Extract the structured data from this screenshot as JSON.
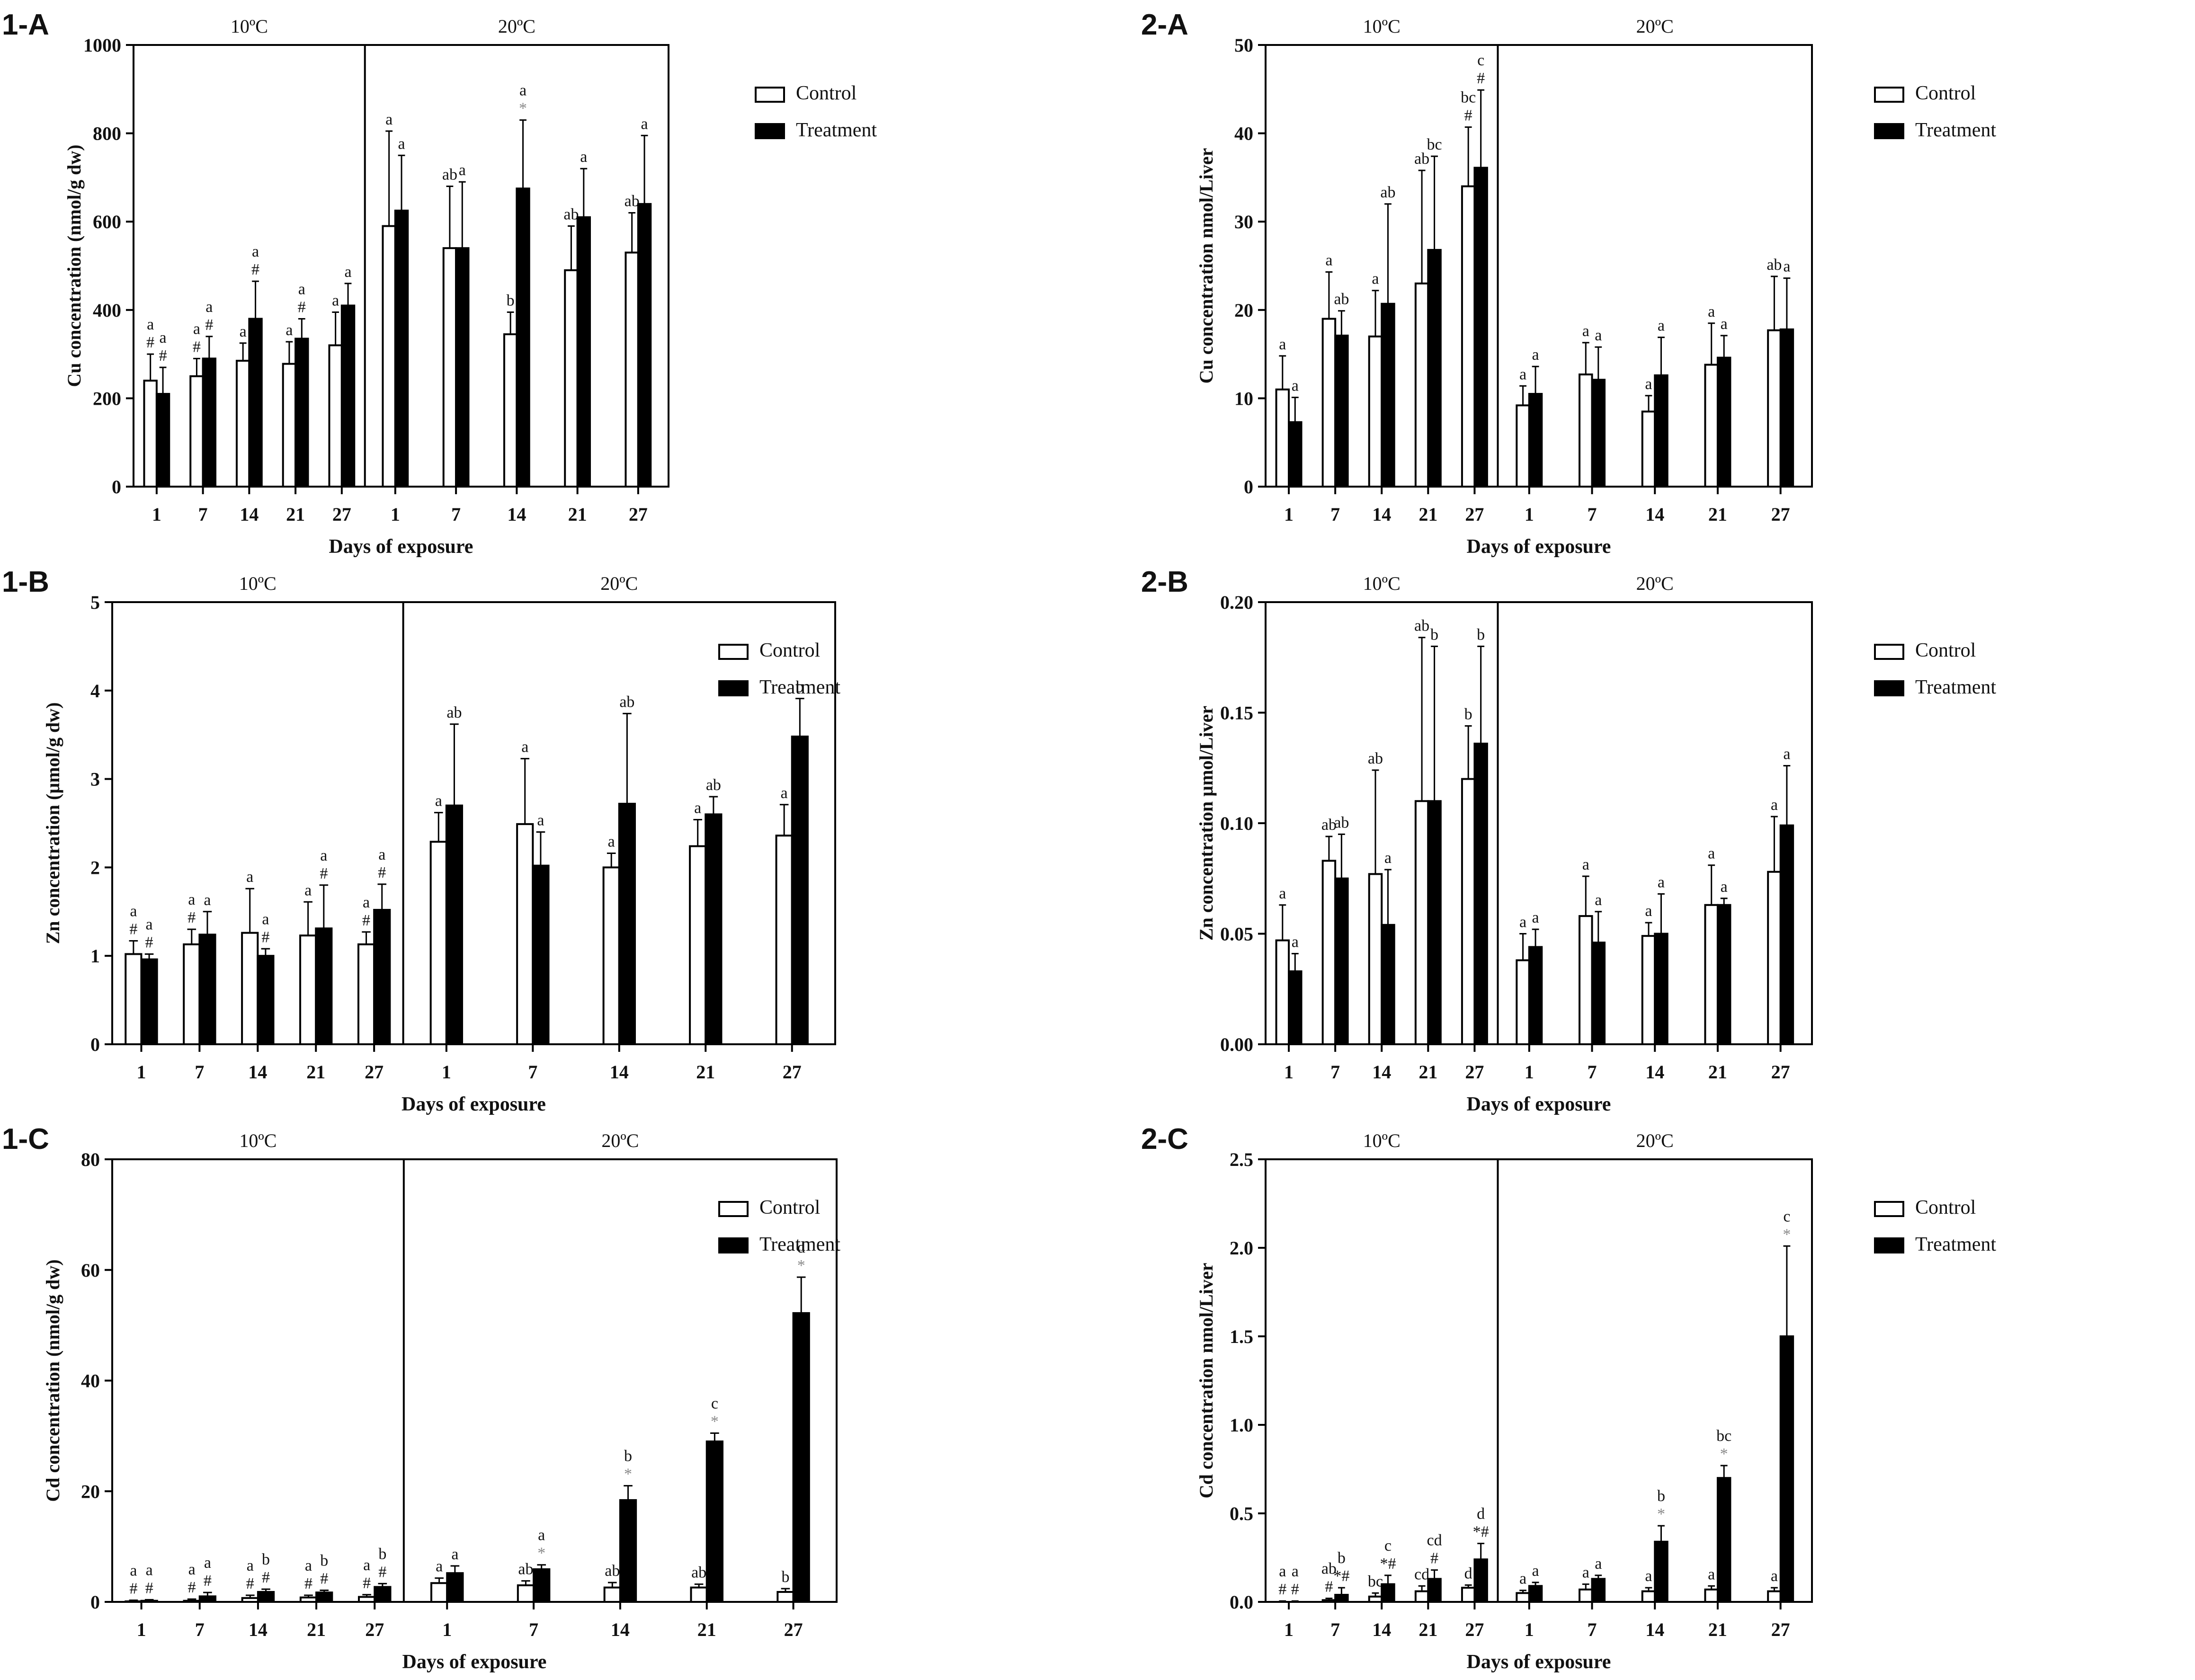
{
  "figure": {
    "legend": {
      "control": "Control",
      "treatment": "Treatment"
    },
    "colors": {
      "control": "#ffffff",
      "treatment": "#000000",
      "axis": "#000000",
      "star": "#8a8a8a"
    }
  },
  "chart_data": [
    {
      "panel": "1-A",
      "type": "bar",
      "ylabel": "Cu concentration (nmol/g dw)",
      "xlabel": "Days of exposure",
      "ylim": [
        0,
        1000
      ],
      "yticks": [
        "0",
        "200",
        "400",
        "600",
        "800",
        "1000"
      ],
      "groups": [
        "10ºC",
        "20ºC"
      ],
      "categories": [
        "1",
        "7",
        "14",
        "21",
        "27",
        "1",
        "7",
        "14",
        "21",
        "27"
      ],
      "series": [
        {
          "name": "Control",
          "values": [
            240,
            250,
            285,
            278,
            320,
            590,
            540,
            345,
            490,
            530
          ],
          "errors": [
            60,
            40,
            40,
            50,
            75,
            215,
            140,
            50,
            100,
            90
          ],
          "labels": [
            "a\n#",
            "a\n#",
            "a",
            "a",
            "a",
            "a",
            "ab",
            "b",
            "ab",
            "ab"
          ]
        },
        {
          "name": "Treatment",
          "values": [
            210,
            290,
            380,
            335,
            410,
            625,
            540,
            675,
            610,
            640
          ],
          "errors": [
            60,
            50,
            85,
            45,
            50,
            125,
            150,
            155,
            110,
            155
          ],
          "labels": [
            "a\n#",
            "a\n#",
            "a\n#",
            "a\n#",
            "a",
            "a",
            "a",
            "a\n*",
            "a",
            "a"
          ]
        }
      ]
    },
    {
      "panel": "2-A",
      "type": "bar",
      "ylabel": "Cu concentration nmol/Liver",
      "xlabel": "Days of exposure",
      "ylim": [
        0,
        50
      ],
      "yticks": [
        "0",
        "10",
        "20",
        "30",
        "40",
        "50"
      ],
      "groups": [
        "10ºC",
        "20ºC"
      ],
      "categories": [
        "1",
        "7",
        "14",
        "21",
        "27",
        "1",
        "7",
        "14",
        "21",
        "27"
      ],
      "series": [
        {
          "name": "Control",
          "values": [
            11,
            19,
            17,
            23,
            34,
            9.2,
            12.7,
            8.5,
            13.8,
            17.7
          ],
          "errors": [
            3.8,
            5.3,
            5.2,
            12.8,
            6.7,
            2.2,
            3.6,
            1.8,
            4.7,
            6.1
          ],
          "labels": [
            "a",
            "a",
            "a",
            "ab",
            "bc\n#",
            "a",
            "a",
            "a",
            "a",
            "ab"
          ]
        },
        {
          "name": "Treatment",
          "values": [
            7.3,
            17.1,
            20.7,
            26.8,
            36.1,
            10.5,
            12.1,
            12.6,
            14.6,
            17.8
          ],
          "errors": [
            2.8,
            2.8,
            11.3,
            10.6,
            8.8,
            3.1,
            3.7,
            4.3,
            2.5,
            5.8
          ],
          "labels": [
            "a",
            "ab",
            "ab",
            "bc",
            "c\n#",
            "a",
            "a",
            "a",
            "a",
            "a"
          ]
        }
      ]
    },
    {
      "panel": "1-B",
      "type": "bar",
      "ylabel": "Zn concentration (µmol/g dw)",
      "xlabel": "Days of exposure",
      "ylim": [
        0,
        5
      ],
      "yticks": [
        "0",
        "1",
        "2",
        "3",
        "4",
        "5"
      ],
      "groups": [
        "10ºC",
        "20ºC"
      ],
      "categories": [
        "1",
        "7",
        "14",
        "21",
        "27",
        "1",
        "7",
        "14",
        "21",
        "27"
      ],
      "series": [
        {
          "name": "Control",
          "values": [
            1.02,
            1.13,
            1.26,
            1.23,
            1.13,
            2.29,
            2.49,
            2.0,
            2.24,
            2.36
          ],
          "errors": [
            0.15,
            0.17,
            0.5,
            0.38,
            0.14,
            0.33,
            0.74,
            0.16,
            0.3,
            0.35
          ],
          "labels": [
            "a\n#",
            "a\n#",
            "a",
            "a",
            "a\n#",
            "a",
            "a",
            "a",
            "a",
            "a"
          ]
        },
        {
          "name": "Treatment",
          "values": [
            0.96,
            1.24,
            1.0,
            1.31,
            1.52,
            2.7,
            2.02,
            2.72,
            2.6,
            3.48
          ],
          "errors": [
            0.06,
            0.26,
            0.08,
            0.49,
            0.29,
            0.92,
            0.38,
            1.02,
            0.2,
            0.43
          ],
          "labels": [
            "a\n#",
            "a",
            "a\n#",
            "a\n#",
            "a\n#",
            "ab",
            "a",
            "ab",
            "ab",
            "b"
          ]
        }
      ]
    },
    {
      "panel": "2-B",
      "type": "bar",
      "ylabel": "Zn concentration µmol/Liver",
      "xlabel": "Days of exposure",
      "ylim": [
        0,
        0.2
      ],
      "yticks": [
        "0.00",
        "0.05",
        "0.10",
        "0.15",
        "0.20"
      ],
      "groups": [
        "10ºC",
        "20ºC"
      ],
      "categories": [
        "1",
        "7",
        "14",
        "21",
        "27",
        "1",
        "7",
        "14",
        "21",
        "27"
      ],
      "series": [
        {
          "name": "Control",
          "values": [
            0.047,
            0.083,
            0.077,
            0.11,
            0.12,
            0.038,
            0.058,
            0.049,
            0.063,
            0.078
          ],
          "errors": [
            0.016,
            0.011,
            0.047,
            0.074,
            0.024,
            0.012,
            0.018,
            0.006,
            0.018,
            0.025
          ],
          "labels": [
            "a",
            "ab",
            "ab",
            "ab",
            "b",
            "a",
            "a",
            "a",
            "a",
            "a"
          ]
        },
        {
          "name": "Treatment",
          "values": [
            0.033,
            0.075,
            0.054,
            0.11,
            0.136,
            0.044,
            0.046,
            0.05,
            0.063,
            0.099
          ],
          "errors": [
            0.008,
            0.02,
            0.025,
            0.07,
            0.044,
            0.008,
            0.014,
            0.018,
            0.003,
            0.027
          ],
          "labels": [
            "a",
            "ab",
            "a",
            "b",
            "b",
            "a",
            "a",
            "a",
            "a",
            "a"
          ]
        }
      ]
    },
    {
      "panel": "1-C",
      "type": "bar",
      "ylabel": "Cd concentration (nmol/g dw)",
      "xlabel": "Days of exposure",
      "ylim": [
        0,
        80
      ],
      "yticks": [
        "0",
        "20",
        "40",
        "60",
        "80"
      ],
      "groups": [
        "10ºC",
        "20ºC"
      ],
      "categories": [
        "1",
        "7",
        "14",
        "21",
        "27",
        "1",
        "7",
        "14",
        "21",
        "27"
      ],
      "series": [
        {
          "name": "Control",
          "values": [
            0.1,
            0.2,
            0.7,
            0.8,
            0.9,
            3.4,
            3.0,
            2.6,
            2.6,
            1.8
          ],
          "errors": [
            0.2,
            0.3,
            0.5,
            0.4,
            0.4,
            0.9,
            0.8,
            0.9,
            0.6,
            0.6
          ],
          "labels": [
            "a\n#",
            "a\n#",
            "a\n#",
            "a\n#",
            "a\n#",
            "a",
            "ab",
            "ab",
            "ab",
            "b"
          ]
        },
        {
          "name": "Treatment",
          "values": [
            0.2,
            1.0,
            1.8,
            1.7,
            2.7,
            5.2,
            5.9,
            18.4,
            29.0,
            52.2
          ],
          "errors": [
            0.2,
            0.7,
            0.5,
            0.4,
            0.6,
            1.3,
            0.8,
            2.6,
            1.5,
            6.5
          ],
          "labels": [
            "a\n#",
            "a\n#",
            "b\n#",
            "b\n#",
            "b\n#",
            "a",
            "a\n*",
            "b\n*",
            "c\n*",
            "d\n*"
          ]
        }
      ]
    },
    {
      "panel": "2-C",
      "type": "bar",
      "ylabel": "Cd concentration nmol/Liver",
      "xlabel": "Days of exposure",
      "ylim": [
        0,
        2.5
      ],
      "yticks": [
        "0.0",
        "0.5",
        "1.0",
        "1.5",
        "2.0",
        "2.5"
      ],
      "groups": [
        "10ºC",
        "20ºC"
      ],
      "categories": [
        "1",
        "7",
        "14",
        "21",
        "27",
        "1",
        "7",
        "14",
        "21",
        "27"
      ],
      "series": [
        {
          "name": "Control",
          "values": [
            0.0,
            0.01,
            0.03,
            0.06,
            0.08,
            0.05,
            0.07,
            0.06,
            0.07,
            0.06
          ],
          "errors": [
            0.005,
            0.01,
            0.02,
            0.03,
            0.015,
            0.015,
            0.03,
            0.02,
            0.02,
            0.02
          ],
          "labels": [
            "a\n#",
            "ab\n#",
            "bc",
            "cd",
            "d",
            "a",
            "a",
            "a",
            "a",
            "a"
          ]
        },
        {
          "name": "Treatment",
          "values": [
            0.0,
            0.04,
            0.1,
            0.13,
            0.24,
            0.09,
            0.13,
            0.34,
            0.7,
            1.5
          ],
          "errors": [
            0.005,
            0.04,
            0.05,
            0.05,
            0.09,
            0.02,
            0.02,
            0.09,
            0.07,
            0.51
          ],
          "labels": [
            "a\n#",
            "b\n*#",
            "c\n*#",
            "cd\n#",
            "d\n*#",
            "a",
            "a",
            "b\n*",
            "bc\n*",
            "c\n*"
          ]
        }
      ]
    }
  ]
}
